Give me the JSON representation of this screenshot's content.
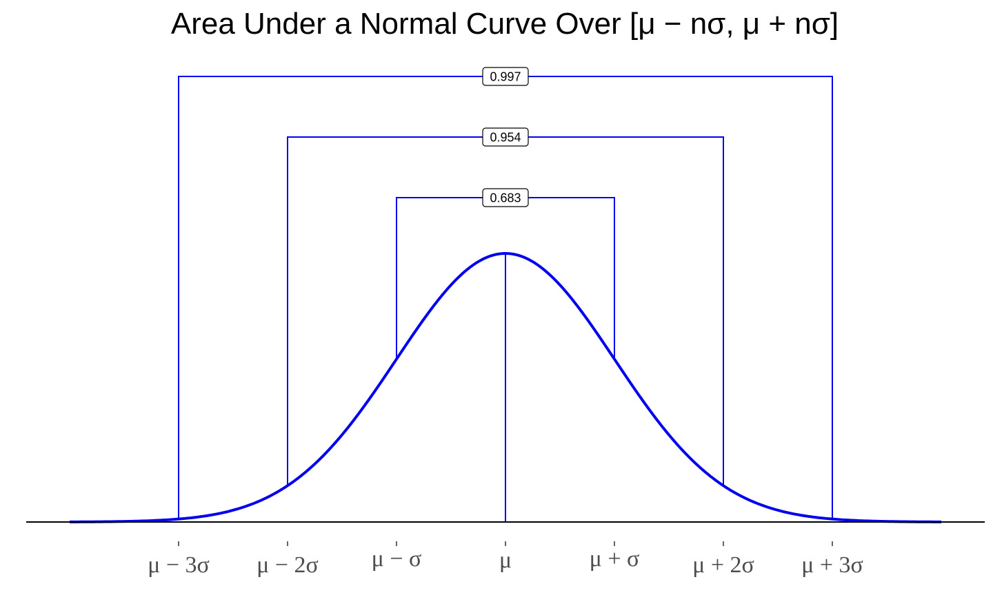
{
  "chart_data": {
    "type": "line",
    "title": "Area Under a Normal Curve Over [μ − nσ, μ + nσ]",
    "xlabel": "",
    "ylabel": "",
    "xlim": [
      -4,
      4
    ],
    "x_ticks": [
      {
        "x": -3,
        "label": "μ − 3σ"
      },
      {
        "x": -2,
        "label": "μ − 2σ"
      },
      {
        "x": -1,
        "label": "μ − σ"
      },
      {
        "x": 0,
        "label": "μ"
      },
      {
        "x": 1,
        "label": "μ + σ"
      },
      {
        "x": 2,
        "label": "μ + 2σ"
      },
      {
        "x": 3,
        "label": "μ + 3σ"
      }
    ],
    "series": [
      {
        "curve": "standard normal density",
        "mean": 0,
        "sd": 1
      }
    ],
    "brackets": [
      {
        "n": 1,
        "from": -1,
        "to": 1,
        "area_label": "0.683"
      },
      {
        "n": 2,
        "from": -2,
        "to": 2,
        "area_label": "0.954"
      },
      {
        "n": 3,
        "from": -3,
        "to": 3,
        "area_label": "0.997"
      }
    ],
    "grid": false,
    "legend": "none",
    "colors": {
      "curve": "#0000ee",
      "brackets": "#0000ee",
      "axis": "#000000",
      "tick_text": "#4d4d4d",
      "title": "#000000"
    }
  }
}
